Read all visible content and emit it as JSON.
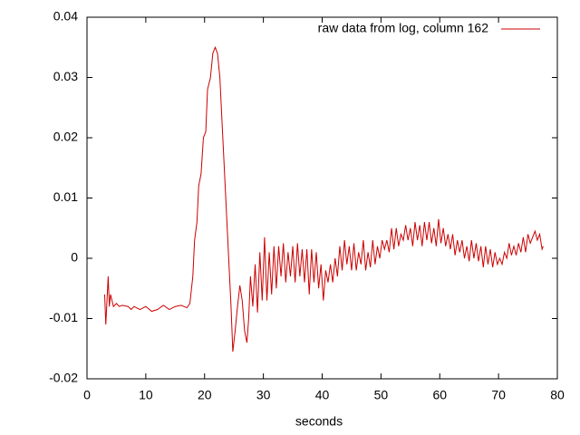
{
  "chart_data": {
    "type": "line",
    "xlabel": "seconds",
    "xlim": [
      0,
      80
    ],
    "ylim": [
      -0.02,
      0.04
    ],
    "xticks": [
      0,
      10,
      20,
      30,
      40,
      50,
      60,
      70,
      80
    ],
    "yticks": [
      -0.02,
      -0.01,
      0,
      0.01,
      0.02,
      0.03,
      0.04
    ],
    "grid": false,
    "legend_position": "top right",
    "x": [
      3.0,
      3.2,
      3.4,
      3.6,
      3.8,
      4.0,
      4.5,
      5,
      5.5,
      6,
      7,
      7.5,
      8,
      9,
      10,
      11,
      12,
      13,
      14,
      15,
      16,
      17,
      17.5,
      18,
      18.3,
      18.7,
      19,
      19.4,
      19.8,
      20.2,
      20.5,
      21,
      21.4,
      21.8,
      22.2,
      22.6,
      23,
      23.5,
      24,
      24.5,
      24.8,
      25.2,
      25.6,
      26,
      26.4,
      26.8,
      27.2,
      27.5,
      27.8,
      28.2,
      28.6,
      29,
      29.4,
      29.8,
      30.2,
      30.6,
      31,
      31.4,
      31.8,
      32.2,
      32.6,
      33,
      33.4,
      33.8,
      34.2,
      34.6,
      35,
      35.4,
      35.8,
      36.2,
      36.6,
      37,
      37.4,
      37.8,
      38.2,
      38.6,
      39,
      39.4,
      39.8,
      40.2,
      40.6,
      41,
      41.4,
      41.8,
      42.2,
      42.6,
      43,
      43.4,
      43.8,
      44.2,
      44.6,
      45,
      45.4,
      45.8,
      46.2,
      46.6,
      47,
      47.4,
      47.8,
      48.2,
      48.6,
      49,
      49.4,
      49.8,
      50.2,
      50.6,
      51,
      51.4,
      51.8,
      52.2,
      52.6,
      53,
      53.4,
      53.8,
      54.2,
      54.6,
      55,
      55.4,
      55.8,
      56.2,
      56.6,
      57,
      57.4,
      57.8,
      58.2,
      58.6,
      59,
      59.4,
      59.8,
      60.2,
      60.6,
      61,
      61.4,
      61.8,
      62.2,
      62.6,
      63,
      63.4,
      63.8,
      64.2,
      64.6,
      65,
      65.4,
      65.8,
      66.2,
      66.6,
      67,
      67.4,
      67.8,
      68.2,
      68.6,
      69,
      69.4,
      69.8,
      70.2,
      70.6,
      71,
      71.4,
      71.8,
      72.2,
      72.6,
      73,
      73.4,
      73.8,
      74.2,
      74.6,
      75,
      75.4,
      75.8,
      76.2,
      76.6,
      77,
      77.4,
      77.6
    ],
    "series": [
      {
        "name": "raw data from log, column 162",
        "color": "#cc0000",
        "values": [
          -0.006,
          -0.011,
          -0.007,
          -0.003,
          -0.008,
          -0.006,
          -0.008,
          -0.0075,
          -0.008,
          -0.0078,
          -0.008,
          -0.0085,
          -0.008,
          -0.0085,
          -0.008,
          -0.0088,
          -0.0085,
          -0.0078,
          -0.0085,
          -0.008,
          -0.0078,
          -0.0082,
          -0.0075,
          -0.003,
          0.003,
          0.006,
          0.012,
          0.014,
          0.02,
          0.021,
          0.028,
          0.03,
          0.034,
          0.035,
          0.034,
          0.03,
          0.022,
          0.012,
          0.002,
          -0.008,
          -0.0155,
          -0.012,
          -0.008,
          -0.0045,
          -0.007,
          -0.012,
          -0.014,
          -0.01,
          -0.003,
          -0.008,
          -0.001,
          -0.009,
          0.001,
          -0.007,
          0.0035,
          -0.007,
          0.001,
          -0.006,
          0.002,
          -0.005,
          0.002,
          -0.003,
          0.0025,
          -0.004,
          0.001,
          -0.003,
          0.002,
          -0.004,
          0.0025,
          -0.003,
          0.0015,
          -0.004,
          0.0015,
          -0.006,
          0.0015,
          -0.004,
          0.001,
          -0.005,
          -0.001,
          -0.007,
          -0.002,
          -0.004,
          -0.001,
          -0.004,
          0.0,
          -0.003,
          0.002,
          -0.002,
          0.003,
          -0.001,
          0.002,
          -0.002,
          0.0025,
          -0.002,
          0.001,
          -0.001,
          0.003,
          -0.002,
          0.001,
          -0.0015,
          0.003,
          -0.001,
          0.002,
          0.0,
          0.003,
          0.0015,
          0.003,
          0.001,
          0.005,
          0.0015,
          0.005,
          0.002,
          0.004,
          0.003,
          0.0055,
          0.003,
          0.005,
          0.002,
          0.006,
          0.003,
          0.0055,
          0.002,
          0.006,
          0.003,
          0.006,
          0.0025,
          0.005,
          0.002,
          0.0065,
          0.0025,
          0.005,
          0.002,
          0.004,
          0.0015,
          0.004,
          0.0005,
          0.003,
          0.001,
          0.003,
          0.0,
          0.002,
          -0.0005,
          0.003,
          0.0,
          0.0025,
          -0.0005,
          0.002,
          -0.0015,
          0.002,
          -0.001,
          0.0015,
          -0.0015,
          0.001,
          -0.001,
          0.0,
          -0.001,
          0.001,
          0.0,
          0.0025,
          0.0005,
          0.002,
          0.0005,
          0.0025,
          0.001,
          0.0035,
          0.001,
          0.004,
          0.0025,
          0.0035,
          0.0045,
          0.003,
          0.004,
          0.0015,
          0.002
        ]
      }
    ]
  }
}
